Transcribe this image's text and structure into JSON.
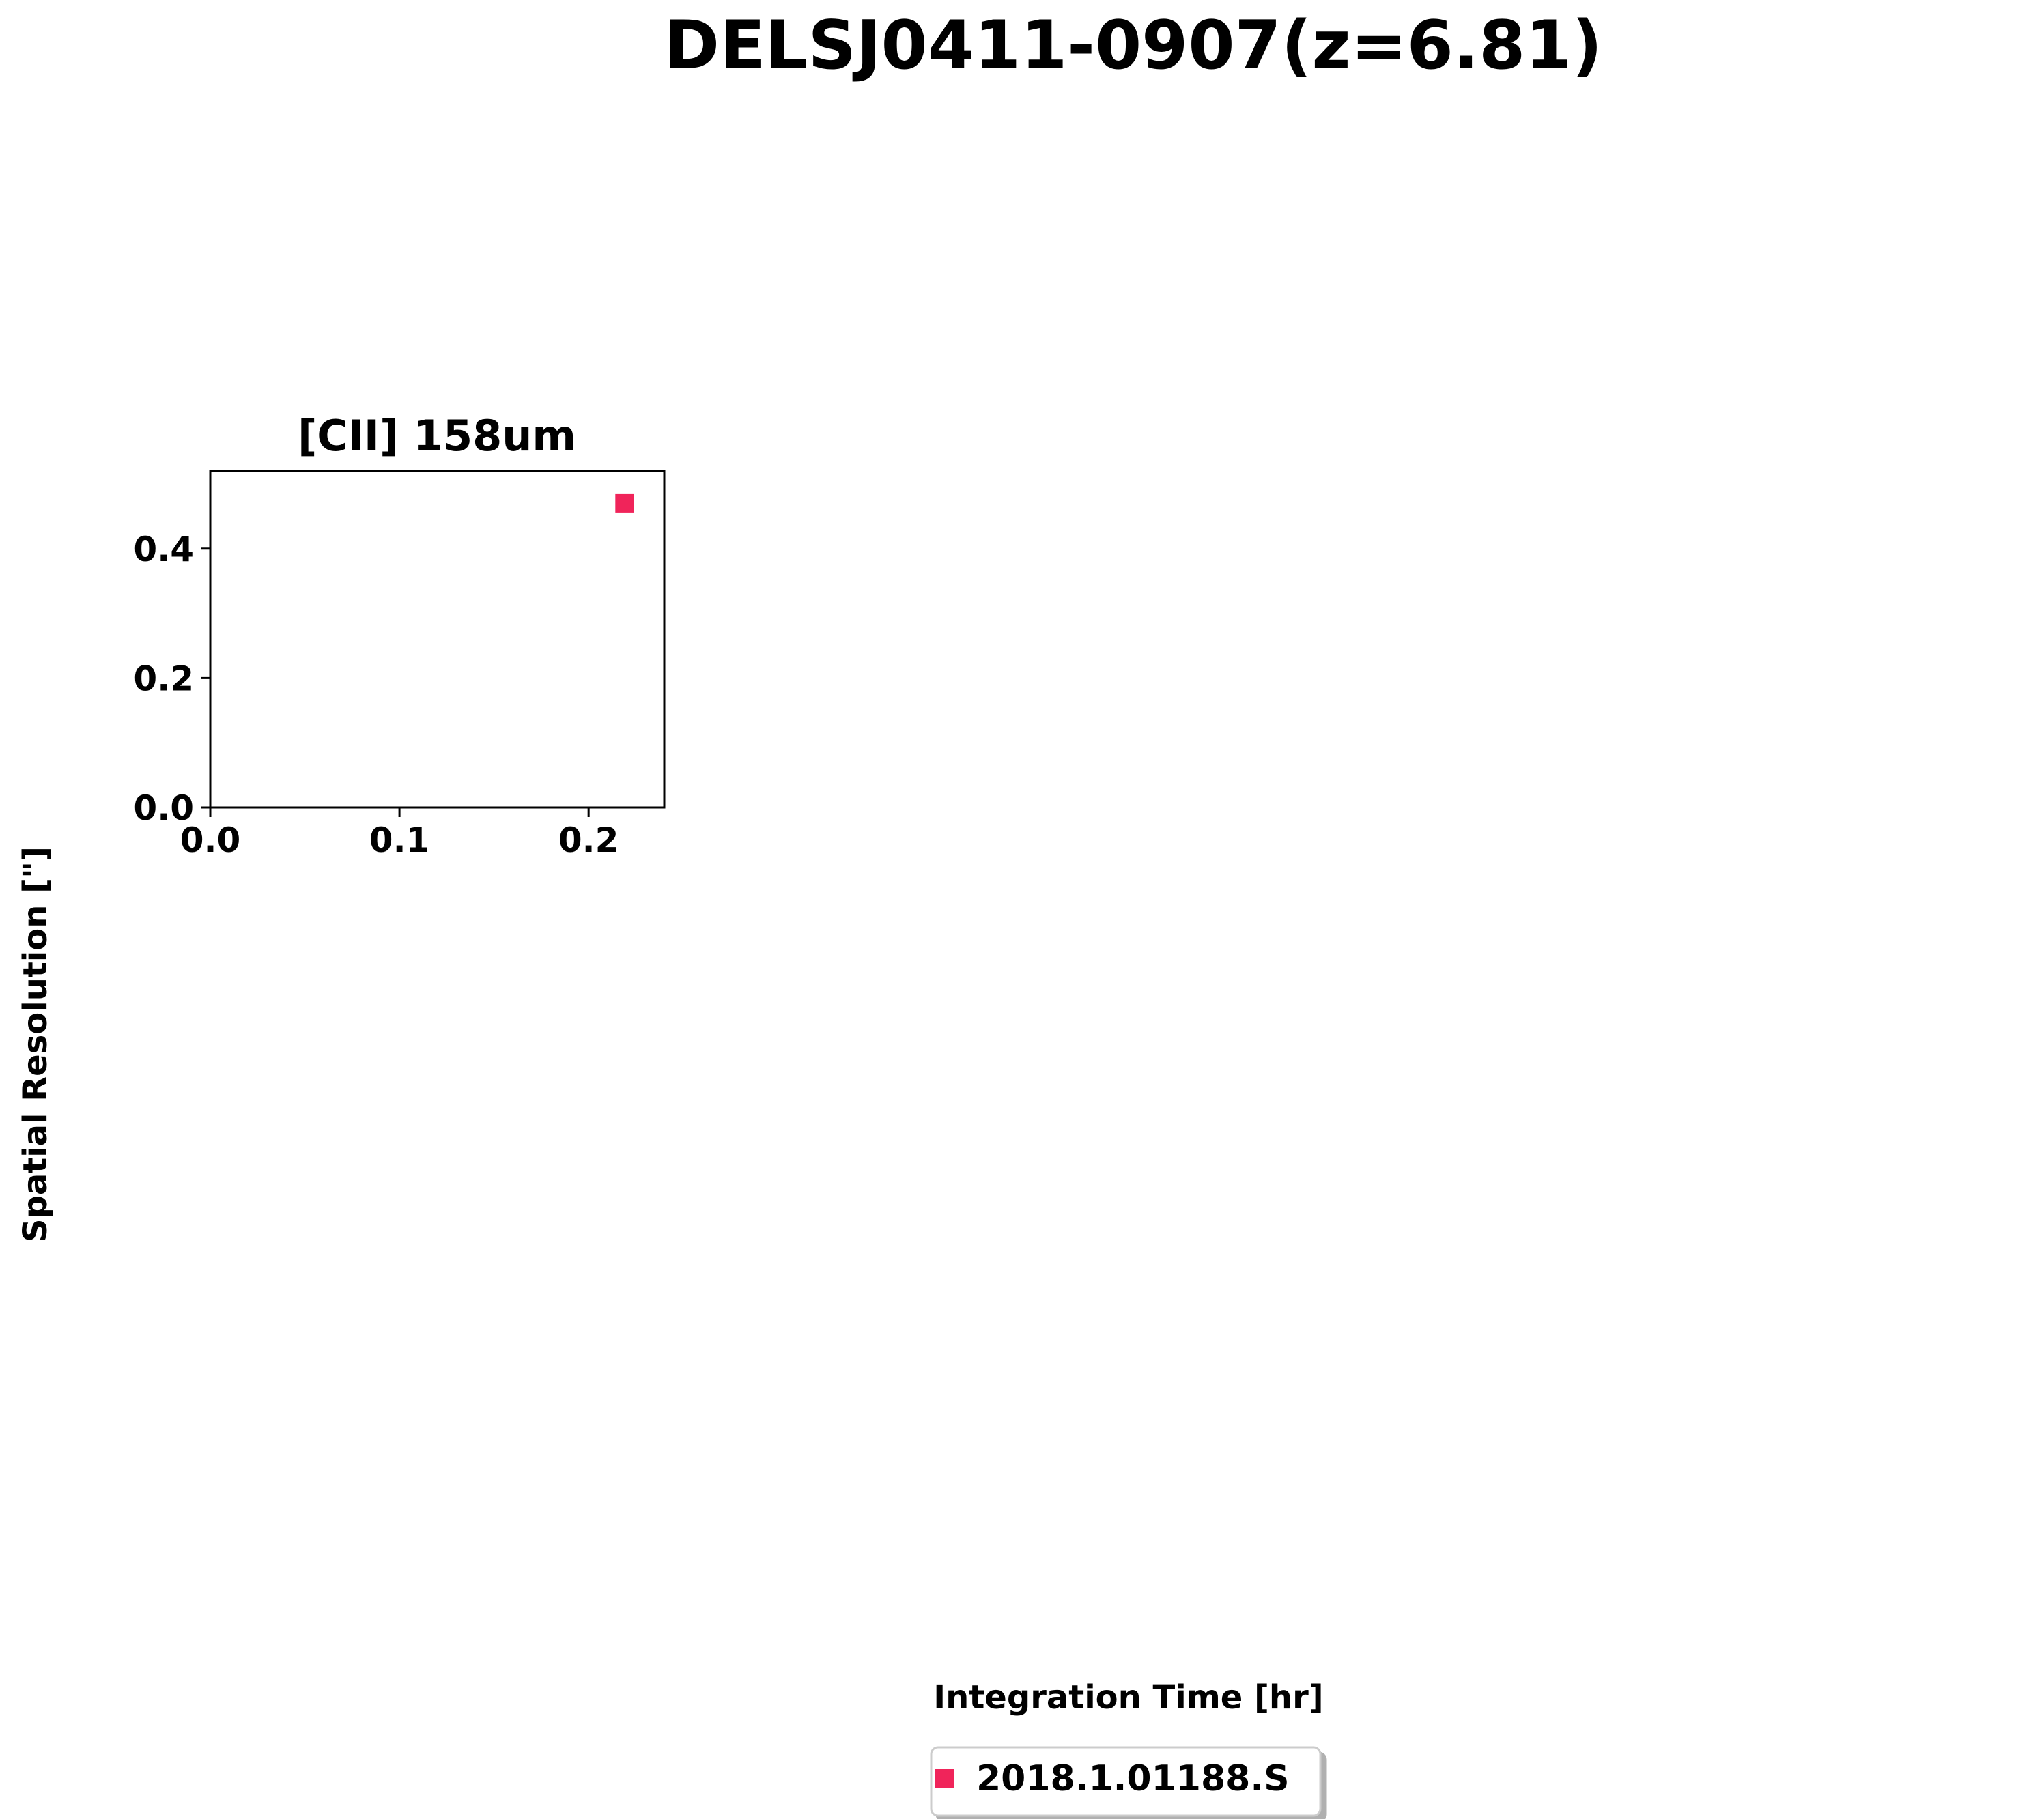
{
  "chart_data": {
    "type": "scatter",
    "title": "DELSJ0411-0907(z=6.81)",
    "subplot_title": "[CII] 158um",
    "xlabel": "Integration Time [hr]",
    "ylabel": "Spatial Resolution [\"]",
    "xlim": [
      0.0,
      0.24
    ],
    "ylim": [
      0.0,
      0.52
    ],
    "x_ticks": [
      0.0,
      0.1,
      0.2
    ],
    "x_tick_labels": [
      "0.0",
      "0.1",
      "0.2"
    ],
    "y_ticks": [
      0.0,
      0.2,
      0.4
    ],
    "y_tick_labels": [
      "0.0",
      "0.2",
      "0.4"
    ],
    "grid": false,
    "legend_placement": "bottom-center",
    "series": [
      {
        "name": "2018.1.01188.S",
        "marker": "square",
        "color": "#f0245a",
        "points": [
          {
            "x": 0.219,
            "y": 0.47
          }
        ]
      }
    ]
  }
}
